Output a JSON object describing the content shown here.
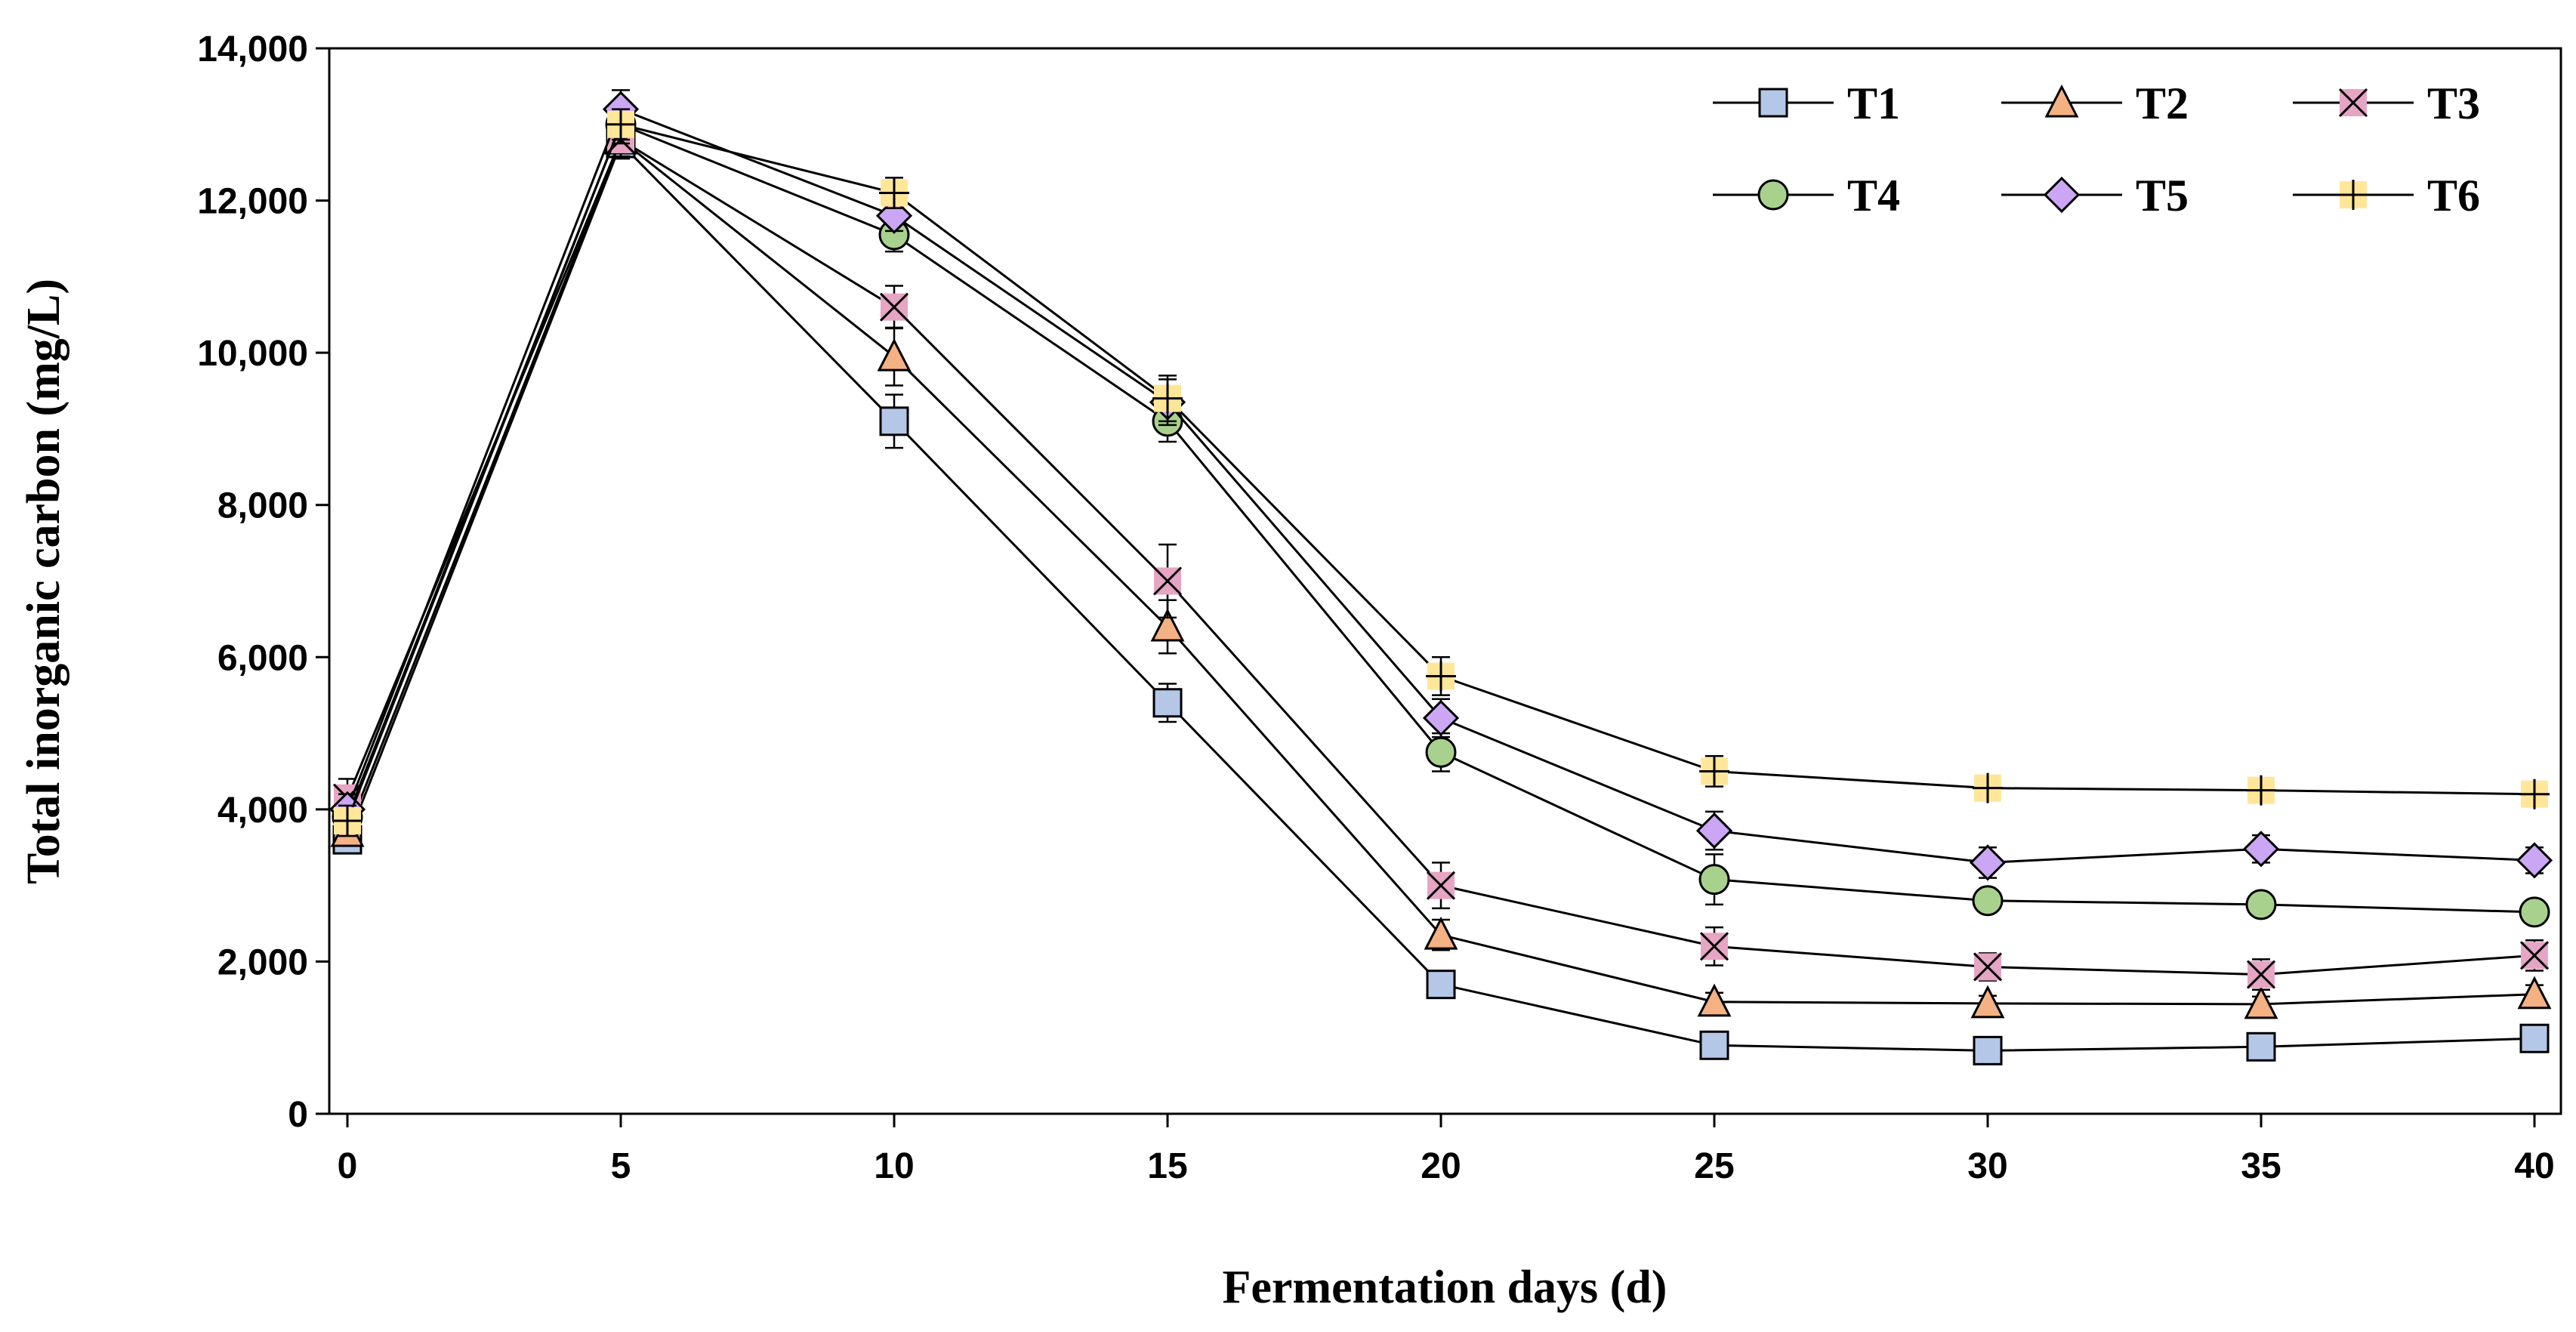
{
  "chart_data": {
    "type": "line",
    "title": "",
    "xlabel": "Fermentation days (d)",
    "ylabel": "Total inorganic carbon (mg/L)",
    "xlim": [
      0,
      40
    ],
    "ylim": [
      0,
      14000
    ],
    "x_ticks": [
      "0",
      "5",
      "10",
      "15",
      "20",
      "25",
      "30",
      "35",
      "40"
    ],
    "y_ticks": [
      "0",
      "2,000",
      "4,000",
      "6,000",
      "8,000",
      "10,000",
      "12,000",
      "14,000"
    ],
    "x": [
      0,
      5,
      10,
      15,
      20,
      25,
      30,
      35,
      40
    ],
    "grid": false,
    "legend_position": "top-right",
    "series": [
      {
        "name": "T1",
        "marker": "square",
        "color": "#b4c7e7",
        "values": [
          3600,
          12750,
          9100,
          5400,
          1700,
          900,
          830,
          880,
          990
        ],
        "errors": [
          100,
          200,
          350,
          250,
          150,
          80,
          60,
          60,
          70
        ]
      },
      {
        "name": "T2",
        "marker": "triangle",
        "color": "#f4b183",
        "values": [
          3700,
          12800,
          9950,
          6400,
          2350,
          1470,
          1450,
          1440,
          1570
        ],
        "errors": [
          120,
          220,
          380,
          350,
          200,
          120,
          100,
          100,
          120
        ]
      },
      {
        "name": "T3",
        "marker": "x-square",
        "color": "#e6a5c4",
        "values": [
          4150,
          12800,
          10600,
          7000,
          3000,
          2200,
          1930,
          1830,
          2080
        ],
        "errors": [
          250,
          230,
          280,
          480,
          300,
          250,
          180,
          200,
          200
        ]
      },
      {
        "name": "T4",
        "marker": "circle",
        "color": "#a9d18e",
        "values": [
          3900,
          13000,
          11550,
          9100,
          4750,
          3080,
          2800,
          2750,
          2650
        ],
        "errors": [
          200,
          250,
          220,
          270,
          250,
          330,
          150,
          140,
          150
        ]
      },
      {
        "name": "T5",
        "marker": "diamond",
        "color": "#cba6f5",
        "values": [
          4000,
          13200,
          11800,
          9350,
          5200,
          3720,
          3300,
          3480,
          3330
        ],
        "errors": [
          200,
          250,
          200,
          300,
          250,
          250,
          200,
          180,
          170
        ]
      },
      {
        "name": "T6",
        "marker": "plus-square",
        "color": "#ffe699",
        "values": [
          3850,
          13000,
          12100,
          9400,
          5750,
          4500,
          4280,
          4250,
          4200
        ],
        "errors": [
          200,
          200,
          200,
          300,
          250,
          200,
          150,
          150,
          150
        ]
      }
    ]
  }
}
